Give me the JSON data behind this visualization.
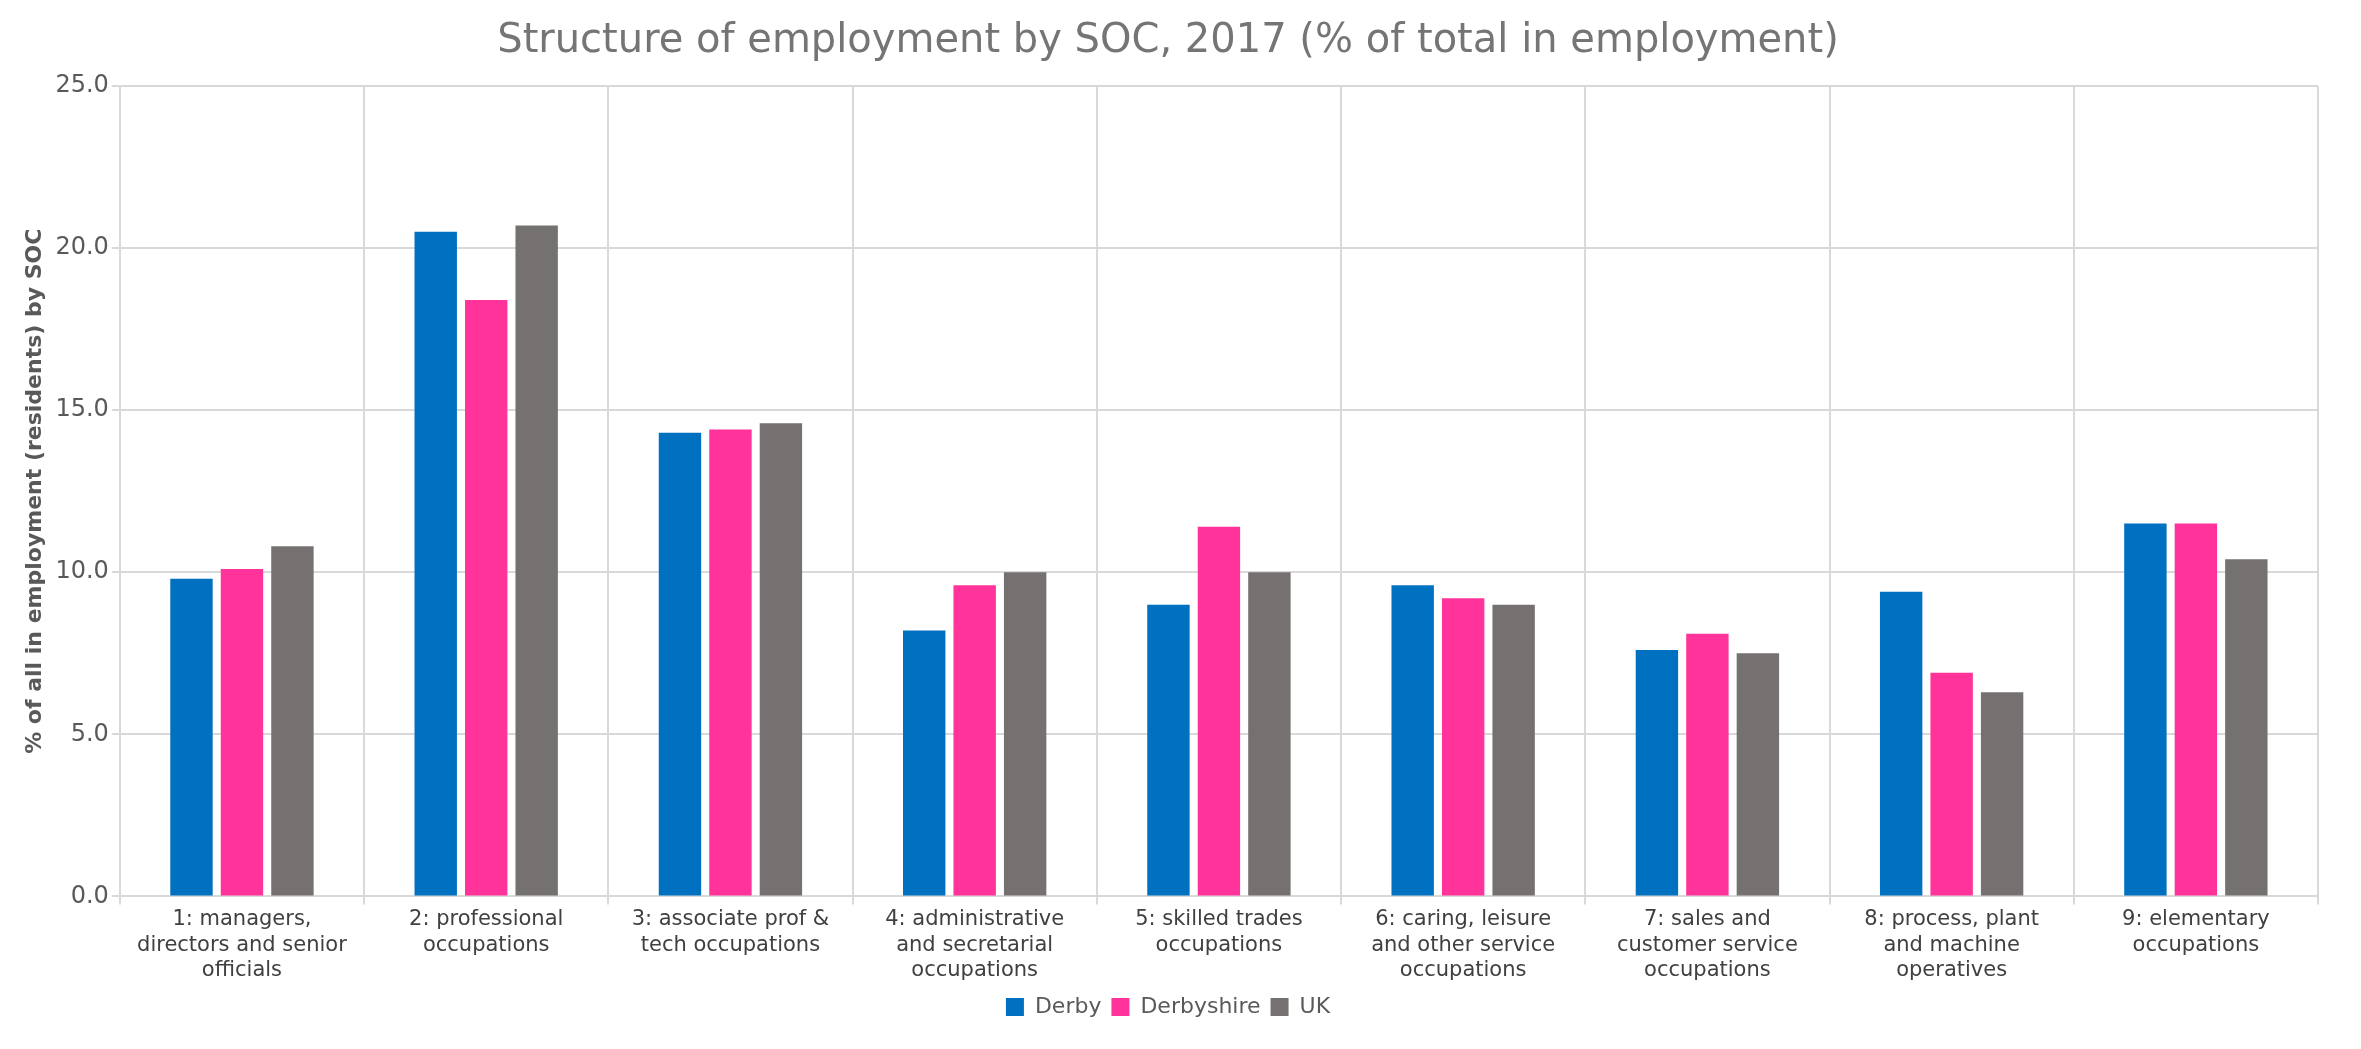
{
  "chart_data": {
    "type": "bar",
    "title": "Structure of employment by SOC, 2017 (% of total in employment)",
    "ylabel": "% of all in employment (residents) by SOC",
    "categories": [
      "1: managers, directors and senior officials",
      "2: professional occupations",
      "3: associate prof & tech occupations",
      "4: administrative and secretarial occupations",
      "5: skilled trades occupations",
      "6: caring, leisure and other service occupations",
      "7: sales and customer service occupations",
      "8: process, plant and machine operatives",
      "9: elementary occupations"
    ],
    "series": [
      {
        "name": "Derby",
        "color": "#0070c0",
        "values": [
          9.8,
          20.5,
          14.3,
          8.2,
          9.0,
          9.6,
          7.6,
          9.4,
          11.5
        ]
      },
      {
        "name": "Derbyshire",
        "color": "#ff3399",
        "values": [
          10.1,
          18.4,
          14.4,
          9.6,
          11.4,
          9.2,
          8.1,
          6.9,
          11.5
        ]
      },
      {
        "name": "UK",
        "color": "#767171",
        "values": [
          10.8,
          20.7,
          14.6,
          10.0,
          10.0,
          9.0,
          7.5,
          6.3,
          10.4
        ]
      }
    ],
    "ylim": [
      0,
      25
    ],
    "yticks": [
      {
        "value": 0,
        "label": "0.0"
      },
      {
        "value": 5,
        "label": "5.0"
      },
      {
        "value": 10,
        "label": "10.0"
      },
      {
        "value": 15,
        "label": "15.0"
      },
      {
        "value": 20,
        "label": "20.0"
      },
      {
        "value": 25,
        "label": "25.0"
      }
    ],
    "grid": true,
    "legend": "bottom"
  }
}
